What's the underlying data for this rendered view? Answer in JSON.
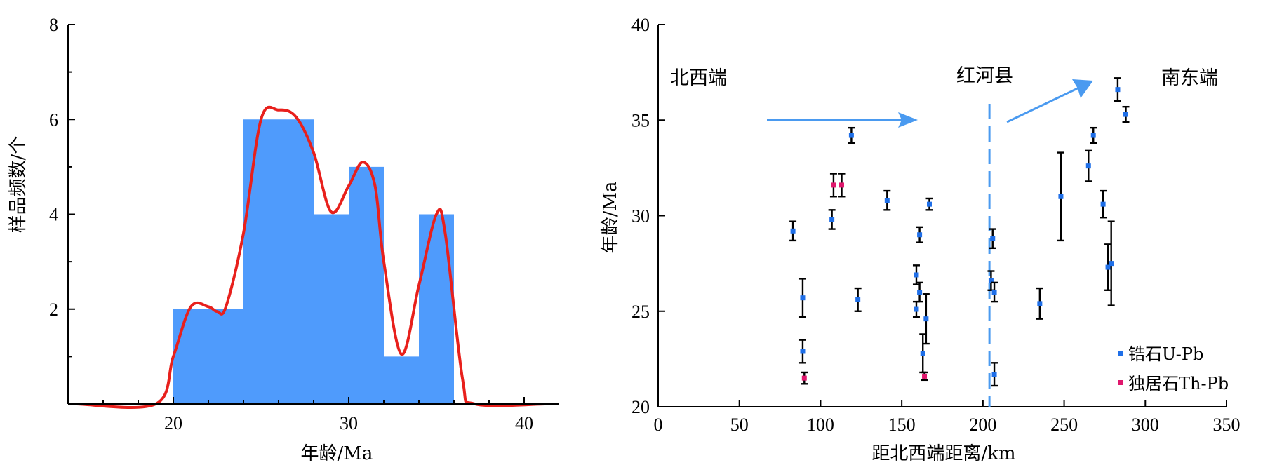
{
  "colors": {
    "bar": "#4f9bfc",
    "kde": "#e8201c",
    "zircon": "#1f6fe8",
    "monazite": "#e0176d",
    "arrow": "#4a9af0",
    "axis": "#000000"
  },
  "chart_data": [
    {
      "type": "bar",
      "xlabel": "年龄/Ma",
      "ylabel": "样品频数/个",
      "xlim": [
        14,
        42
      ],
      "ylim": [
        0,
        8
      ],
      "xticks": [
        20,
        30,
        40
      ],
      "yticks": [
        2,
        4,
        6,
        8
      ],
      "bins": [
        {
          "x0": 20,
          "x1": 24,
          "count": 2
        },
        {
          "x0": 24,
          "x1": 28,
          "count": 6
        },
        {
          "x0": 28,
          "x1": 30,
          "count": 4
        },
        {
          "x0": 30,
          "x1": 32,
          "count": 5
        },
        {
          "x0": 32,
          "x1": 34,
          "count": 1
        },
        {
          "x0": 34,
          "x1": 36,
          "count": 4
        }
      ],
      "kde_curve": [
        [
          14.5,
          0
        ],
        [
          19,
          0
        ],
        [
          20,
          1.0
        ],
        [
          21,
          2.05
        ],
        [
          22,
          2.05
        ],
        [
          22.5,
          1.95
        ],
        [
          23,
          2.05
        ],
        [
          24,
          3.6
        ],
        [
          25,
          6.0
        ],
        [
          26,
          6.2
        ],
        [
          27,
          6.05
        ],
        [
          28,
          5.3
        ],
        [
          29,
          4.05
        ],
        [
          30,
          4.6
        ],
        [
          30.8,
          5.1
        ],
        [
          31.5,
          4.6
        ],
        [
          32,
          3.0
        ],
        [
          33,
          1.05
        ],
        [
          34,
          2.5
        ],
        [
          35,
          4.0
        ],
        [
          35.5,
          3.6
        ],
        [
          36.5,
          0.5
        ],
        [
          37.2,
          0
        ],
        [
          41.2,
          0
        ]
      ]
    },
    {
      "type": "scatter",
      "xlabel": "距北西端距离/km",
      "ylabel": "年龄/Ma",
      "xlim": [
        0,
        350
      ],
      "ylim": [
        20,
        40
      ],
      "xticks": [
        0,
        50,
        100,
        150,
        200,
        250,
        300,
        350
      ],
      "yticks": [
        20,
        25,
        30,
        35,
        40
      ],
      "vertical_line_x": 204,
      "annotations": [
        "北西端",
        "红河县",
        "南东端"
      ],
      "legend": {
        "placement": "bottom-right",
        "entries": [
          "锆石U-Pb",
          "独居石Th-Pb"
        ]
      },
      "series": [
        {
          "name": "锆石U-Pb",
          "points": [
            {
              "x": 83,
              "y": 29.2,
              "err": 0.5
            },
            {
              "x": 89,
              "y": 25.7,
              "err": 1.0
            },
            {
              "x": 89,
              "y": 22.9,
              "err": 0.6
            },
            {
              "x": 107,
              "y": 29.8,
              "err": 0.5
            },
            {
              "x": 119,
              "y": 34.2,
              "err": 0.4
            },
            {
              "x": 123,
              "y": 25.6,
              "err": 0.6
            },
            {
              "x": 141,
              "y": 30.8,
              "err": 0.5
            },
            {
              "x": 159,
              "y": 26.9,
              "err": 0.5
            },
            {
              "x": 159,
              "y": 25.1,
              "err": 0.4
            },
            {
              "x": 161,
              "y": 29.0,
              "err": 0.4
            },
            {
              "x": 161,
              "y": 26.0,
              "err": 0.5
            },
            {
              "x": 163,
              "y": 22.8,
              "err": 1.0
            },
            {
              "x": 165,
              "y": 24.6,
              "err": 1.3
            },
            {
              "x": 167,
              "y": 30.6,
              "err": 0.3
            },
            {
              "x": 205,
              "y": 26.6,
              "err": 0.5
            },
            {
              "x": 206,
              "y": 28.8,
              "err": 0.5
            },
            {
              "x": 207,
              "y": 26.0,
              "err": 0.5
            },
            {
              "x": 207,
              "y": 21.7,
              "err": 0.6
            },
            {
              "x": 235,
              "y": 25.4,
              "err": 0.8
            },
            {
              "x": 248,
              "y": 31.0,
              "err": 2.3
            },
            {
              "x": 265,
              "y": 32.6,
              "err": 0.8
            },
            {
              "x": 268,
              "y": 34.2,
              "err": 0.4
            },
            {
              "x": 274,
              "y": 30.6,
              "err": 0.7
            },
            {
              "x": 277,
              "y": 27.3,
              "err": 1.2
            },
            {
              "x": 279,
              "y": 27.5,
              "err": 2.2
            },
            {
              "x": 283,
              "y": 36.6,
              "err": 0.6
            },
            {
              "x": 288,
              "y": 35.3,
              "err": 0.4
            }
          ]
        },
        {
          "name": "独居石Th-Pb",
          "points": [
            {
              "x": 90,
              "y": 21.5,
              "err": 0.3
            },
            {
              "x": 108,
              "y": 31.6,
              "err": 0.6
            },
            {
              "x": 113,
              "y": 31.6,
              "err": 0.6
            },
            {
              "x": 164,
              "y": 21.6,
              "err": 0.2
            }
          ]
        }
      ]
    }
  ]
}
